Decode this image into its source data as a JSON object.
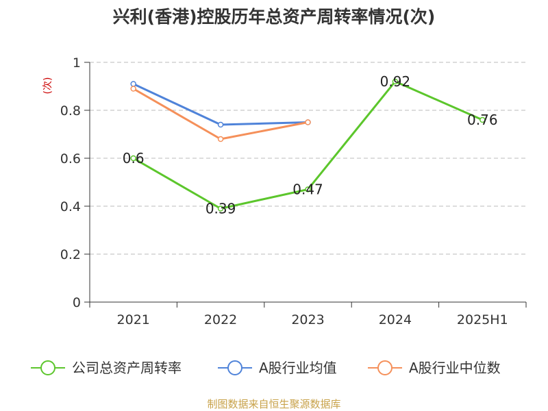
{
  "chart_data": {
    "type": "line",
    "title": "兴利(香港)控股历年总资产周转率情况(次)",
    "ylabel": "(次)",
    "categories": [
      "2021",
      "2022",
      "2023",
      "2024",
      "2025H1"
    ],
    "ylim": [
      0,
      1
    ],
    "yticks": [
      0,
      0.2,
      0.4,
      0.6,
      0.8,
      1
    ],
    "ytick_labels": [
      "0",
      "0.2",
      "0.4",
      "0.6",
      "0.8",
      "1"
    ],
    "grid": true,
    "series": [
      {
        "name": "公司总资产周转率",
        "color": "#5cc62c",
        "values": [
          0.6,
          0.39,
          0.47,
          0.92,
          0.76
        ],
        "labels": [
          "0.6",
          "0.39",
          "0.47",
          "0.92",
          "0.76"
        ]
      },
      {
        "name": "A股行业均值",
        "color": "#4f83d9",
        "values": [
          0.91,
          0.74,
          0.75,
          null,
          null
        ]
      },
      {
        "name": "A股行业中位数",
        "color": "#f5905a",
        "values": [
          0.89,
          0.68,
          0.75,
          null,
          null
        ]
      }
    ],
    "legend_position": "bottom",
    "source": "制图数据来自恒生聚源数据库"
  }
}
